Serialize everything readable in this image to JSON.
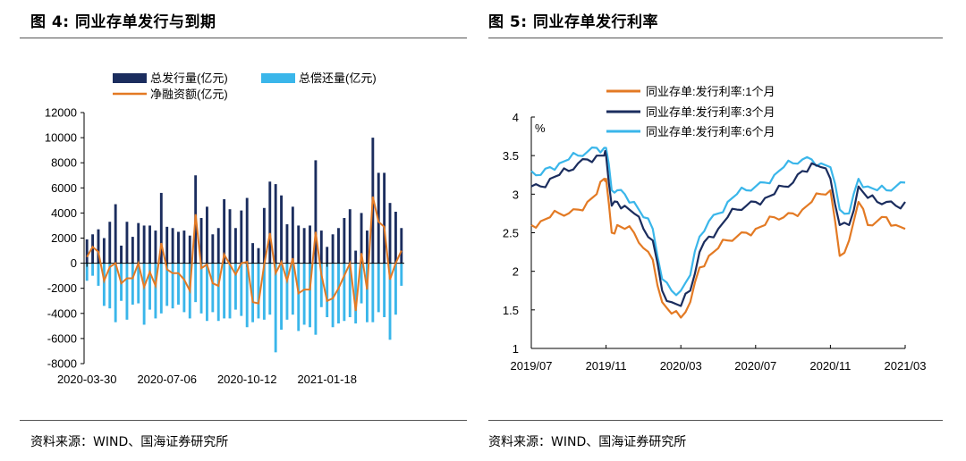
{
  "left": {
    "title": "图 4:  同业存单发行与到期",
    "source": "资料来源：WIND、国海证券研究所",
    "colors": {
      "issue": "#1b2d5e",
      "repay": "#3ab6ea",
      "net": "#e37a24"
    },
    "chart_data": {
      "type": "bar",
      "legend": [
        "总发行量(亿元)",
        "总偿还量(亿元)",
        "净融资额(亿元)"
      ],
      "ylim": [
        -8000,
        12000
      ],
      "yticks": [
        12000,
        10000,
        8000,
        6000,
        4000,
        2000,
        0,
        -2000,
        -4000,
        -6000,
        -8000
      ],
      "xticks": [
        "2020-03-30",
        "2020-07-06",
        "2020-10-12",
        "2021-01-18"
      ],
      "xtick_index": [
        0,
        14,
        28,
        42
      ],
      "series": [
        {
          "name": "总发行量(亿元)",
          "type": "bar",
          "values": [
            1900,
            2300,
            2700,
            2000,
            3300,
            4700,
            1400,
            3300,
            2100,
            3200,
            3000,
            3000,
            2600,
            5600,
            2900,
            2800,
            2500,
            2600,
            2200,
            7000,
            3600,
            4500,
            2300,
            2800,
            5100,
            4300,
            2800,
            4200,
            5200,
            1600,
            1200,
            4400,
            6500,
            6300,
            5400,
            3100,
            4500,
            3000,
            2800,
            3000,
            8200,
            2600,
            1300,
            2300,
            2800,
            3600,
            4300,
            1000,
            4000,
            2600,
            10000,
            7200,
            7200,
            4800,
            4100,
            2800
          ]
        },
        {
          "name": "总偿还量(亿元)",
          "type": "bar",
          "values": [
            -1400,
            -1000,
            -1800,
            -3400,
            -3600,
            -4700,
            -3000,
            -4500,
            -3300,
            -3200,
            -4900,
            -3700,
            -4400,
            -4000,
            -3400,
            -3600,
            -3300,
            -3900,
            -4400,
            -3100,
            -4000,
            -4600,
            -3900,
            -4600,
            -4400,
            -4400,
            -3700,
            -4200,
            -5100,
            -4700,
            -4400,
            -4500,
            -4100,
            -7100,
            -5300,
            -4500,
            -4100,
            -5400,
            -4900,
            -5100,
            -5700,
            -3500,
            -4300,
            -5100,
            -4800,
            -4600,
            -4300,
            -4800,
            -3200,
            -4700,
            -4700,
            -3900,
            -4300,
            -6100,
            -4100,
            -1800
          ]
        },
        {
          "name": "净融资额(亿元)",
          "type": "line",
          "values": [
            500,
            1300,
            900,
            -1400,
            -300,
            0,
            -1600,
            -1200,
            -1200,
            0,
            -1900,
            -700,
            -1800,
            1600,
            -500,
            -800,
            -800,
            -1300,
            -2200,
            3900,
            -400,
            -100,
            -1600,
            -1800,
            700,
            -100,
            -900,
            0,
            100,
            -3100,
            -3200,
            -100,
            2400,
            -800,
            100,
            -1400,
            400,
            -2400,
            -2100,
            -2100,
            2500,
            -900,
            -3000,
            -2800,
            -2000,
            -1000,
            0,
            -3800,
            800,
            -2100,
            5300,
            3300,
            2900,
            -1300,
            0,
            1000
          ]
        }
      ]
    }
  },
  "right": {
    "title": "图 5:  同业存单发行利率",
    "source": "资料来源：WIND、国海证券研究所",
    "colors": {
      "m1": "#e37a24",
      "m3": "#1b2d5e",
      "m6": "#3ab6ea"
    },
    "chart_data": {
      "type": "line",
      "ylabel": "%",
      "ylim": [
        1,
        4
      ],
      "yticks": [
        4,
        3.5,
        3,
        2.5,
        2,
        1.5,
        1
      ],
      "xlim": [
        "2019/07",
        "2021/03"
      ],
      "xticks": [
        "2019/07",
        "2019/11",
        "2020/03",
        "2020/07",
        "2020/11",
        "2021/03"
      ],
      "x": [
        0,
        0.5,
        1,
        1.5,
        2,
        2.5,
        3,
        3.5,
        3.9,
        4,
        4.3,
        4.6,
        5,
        5.5,
        6,
        6.5,
        7,
        7.5,
        8,
        8.5,
        9,
        9.5,
        10,
        10.5,
        11,
        11.5,
        12,
        12.5,
        13,
        13.5,
        14,
        14.5,
        15,
        15.5,
        16,
        16.5,
        17,
        17.5,
        18,
        18.5,
        19,
        19.5,
        20
      ],
      "series": [
        {
          "name": "同业存单:发行利率:1个月",
          "values": [
            2.6,
            2.65,
            2.7,
            2.75,
            2.75,
            2.8,
            2.9,
            3.0,
            3.2,
            3.2,
            2.5,
            2.6,
            2.55,
            2.5,
            2.3,
            2.15,
            1.6,
            1.45,
            1.4,
            1.6,
            2.05,
            2.2,
            2.3,
            2.4,
            2.45,
            2.5,
            2.55,
            2.6,
            2.7,
            2.7,
            2.75,
            2.8,
            2.9,
            3.0,
            3.05,
            2.2,
            2.4,
            2.9,
            2.6,
            2.65,
            2.7,
            2.6,
            2.55
          ]
        },
        {
          "name": "同业存单:发行利率:3个月",
          "values": [
            3.1,
            3.1,
            3.2,
            3.25,
            3.3,
            3.4,
            3.45,
            3.5,
            3.5,
            3.5,
            2.85,
            2.9,
            2.85,
            2.75,
            2.55,
            2.4,
            1.75,
            1.6,
            1.55,
            1.75,
            2.25,
            2.45,
            2.55,
            2.7,
            2.8,
            2.85,
            2.9,
            2.95,
            3.0,
            3.1,
            3.15,
            3.3,
            3.4,
            3.35,
            3.2,
            2.6,
            2.6,
            3.1,
            2.95,
            2.9,
            2.9,
            2.85,
            2.9
          ]
        },
        {
          "name": "同业存单:发行利率:6个月",
          "values": [
            3.3,
            3.25,
            3.35,
            3.4,
            3.45,
            3.5,
            3.55,
            3.6,
            3.6,
            3.6,
            3.05,
            3.05,
            3.0,
            2.9,
            2.7,
            2.55,
            1.9,
            1.75,
            1.75,
            1.95,
            2.45,
            2.65,
            2.75,
            2.9,
            3.0,
            3.05,
            3.1,
            3.15,
            3.25,
            3.35,
            3.4,
            3.45,
            3.45,
            3.4,
            3.35,
            2.8,
            2.75,
            3.2,
            3.1,
            3.05,
            3.05,
            3.1,
            3.15
          ]
        }
      ]
    }
  }
}
